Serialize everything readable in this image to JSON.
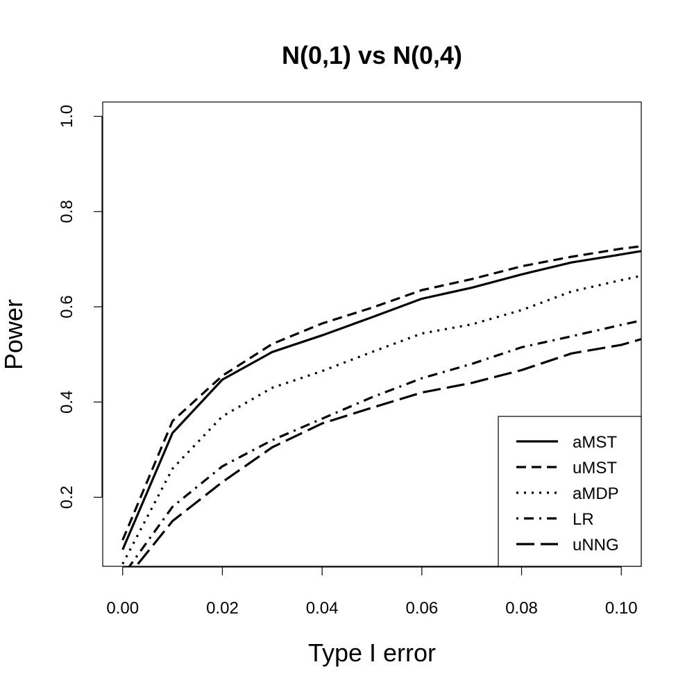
{
  "chart_data": {
    "type": "line",
    "title": "N(0,1) vs N(0,4)",
    "xlabel": "Type I error",
    "ylabel": "Power",
    "xlim": [
      -0.004,
      0.104
    ],
    "ylim": [
      0.055,
      1.03
    ],
    "x_ticks": [
      "0.00",
      "0.02",
      "0.04",
      "0.06",
      "0.08",
      "0.10"
    ],
    "y_ticks": [
      "0.2",
      "0.4",
      "0.6",
      "0.8",
      "1.0"
    ],
    "x": [
      0.0,
      0.01,
      0.02,
      0.03,
      0.04,
      0.05,
      0.06,
      0.07,
      0.08,
      0.09,
      0.1,
      0.104
    ],
    "legend_position": "bottom-right",
    "grid": false,
    "series": [
      {
        "name": "aMST",
        "dash": "solid",
        "values": [
          0.09,
          0.335,
          0.447,
          0.505,
          0.54,
          0.578,
          0.617,
          0.64,
          0.668,
          0.693,
          0.71,
          0.717
        ]
      },
      {
        "name": "uMST",
        "dash": "dashed",
        "values": [
          0.11,
          0.36,
          0.455,
          0.522,
          0.565,
          0.598,
          0.635,
          0.658,
          0.685,
          0.705,
          0.722,
          0.727
        ]
      },
      {
        "name": "aMDP",
        "dash": "dotted",
        "values": [
          0.06,
          0.26,
          0.37,
          0.43,
          0.465,
          0.505,
          0.544,
          0.563,
          0.593,
          0.632,
          0.656,
          0.665
        ]
      },
      {
        "name": "LR",
        "dash": "dotdash",
        "values": [
          0.035,
          0.18,
          0.265,
          0.32,
          0.365,
          0.41,
          0.45,
          0.48,
          0.515,
          0.538,
          0.562,
          0.571
        ]
      },
      {
        "name": "uNNG",
        "dash": "longdash",
        "values": [
          0.02,
          0.15,
          0.232,
          0.305,
          0.355,
          0.388,
          0.42,
          0.44,
          0.467,
          0.502,
          0.52,
          0.532
        ]
      }
    ]
  }
}
